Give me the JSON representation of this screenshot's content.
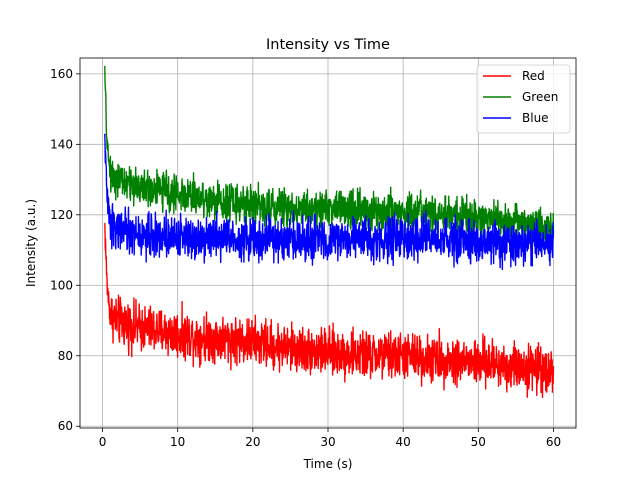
{
  "chart_data": {
    "type": "line",
    "title": "Intensity vs Time",
    "xlabel": "Time (s)",
    "ylabel": "Intensity (a.u.)",
    "xlim": [
      -3,
      63
    ],
    "ylim": [
      59.5,
      164.5
    ],
    "xticks": [
      0,
      10,
      20,
      30,
      40,
      50,
      60
    ],
    "yticks": [
      60,
      80,
      100,
      120,
      140,
      160
    ],
    "grid": true,
    "legend_position": "top-right",
    "series": [
      {
        "name": "Red",
        "color": "#ff0000",
        "x": [
          0.3,
          0.6,
          1,
          2,
          3,
          5,
          10,
          15,
          20,
          25,
          30,
          35,
          40,
          45,
          50,
          55,
          60
        ],
        "values": [
          117,
          100,
          92,
          90,
          89,
          88,
          86,
          85,
          84,
          82,
          81,
          80,
          80,
          79,
          78,
          77,
          76
        ],
        "noise_amplitude": 5
      },
      {
        "name": "Green",
        "color": "#008000",
        "x": [
          0.3,
          0.6,
          1,
          2,
          3,
          5,
          10,
          15,
          20,
          25,
          30,
          35,
          40,
          45,
          50,
          55,
          60
        ],
        "values": [
          160,
          140,
          132,
          130,
          129,
          128,
          126,
          124,
          123,
          122,
          122,
          121,
          121,
          120,
          119,
          118,
          116
        ],
        "noise_amplitude": 4
      },
      {
        "name": "Blue",
        "color": "#0000ff",
        "x": [
          0.3,
          0.6,
          1,
          2,
          3,
          5,
          10,
          15,
          20,
          25,
          30,
          35,
          40,
          45,
          50,
          55,
          60
        ],
        "values": [
          142,
          125,
          118,
          116,
          115,
          114,
          114,
          114,
          113,
          113,
          113,
          113,
          113,
          113,
          112,
          112,
          112
        ],
        "noise_amplitude": 4.5
      }
    ]
  }
}
